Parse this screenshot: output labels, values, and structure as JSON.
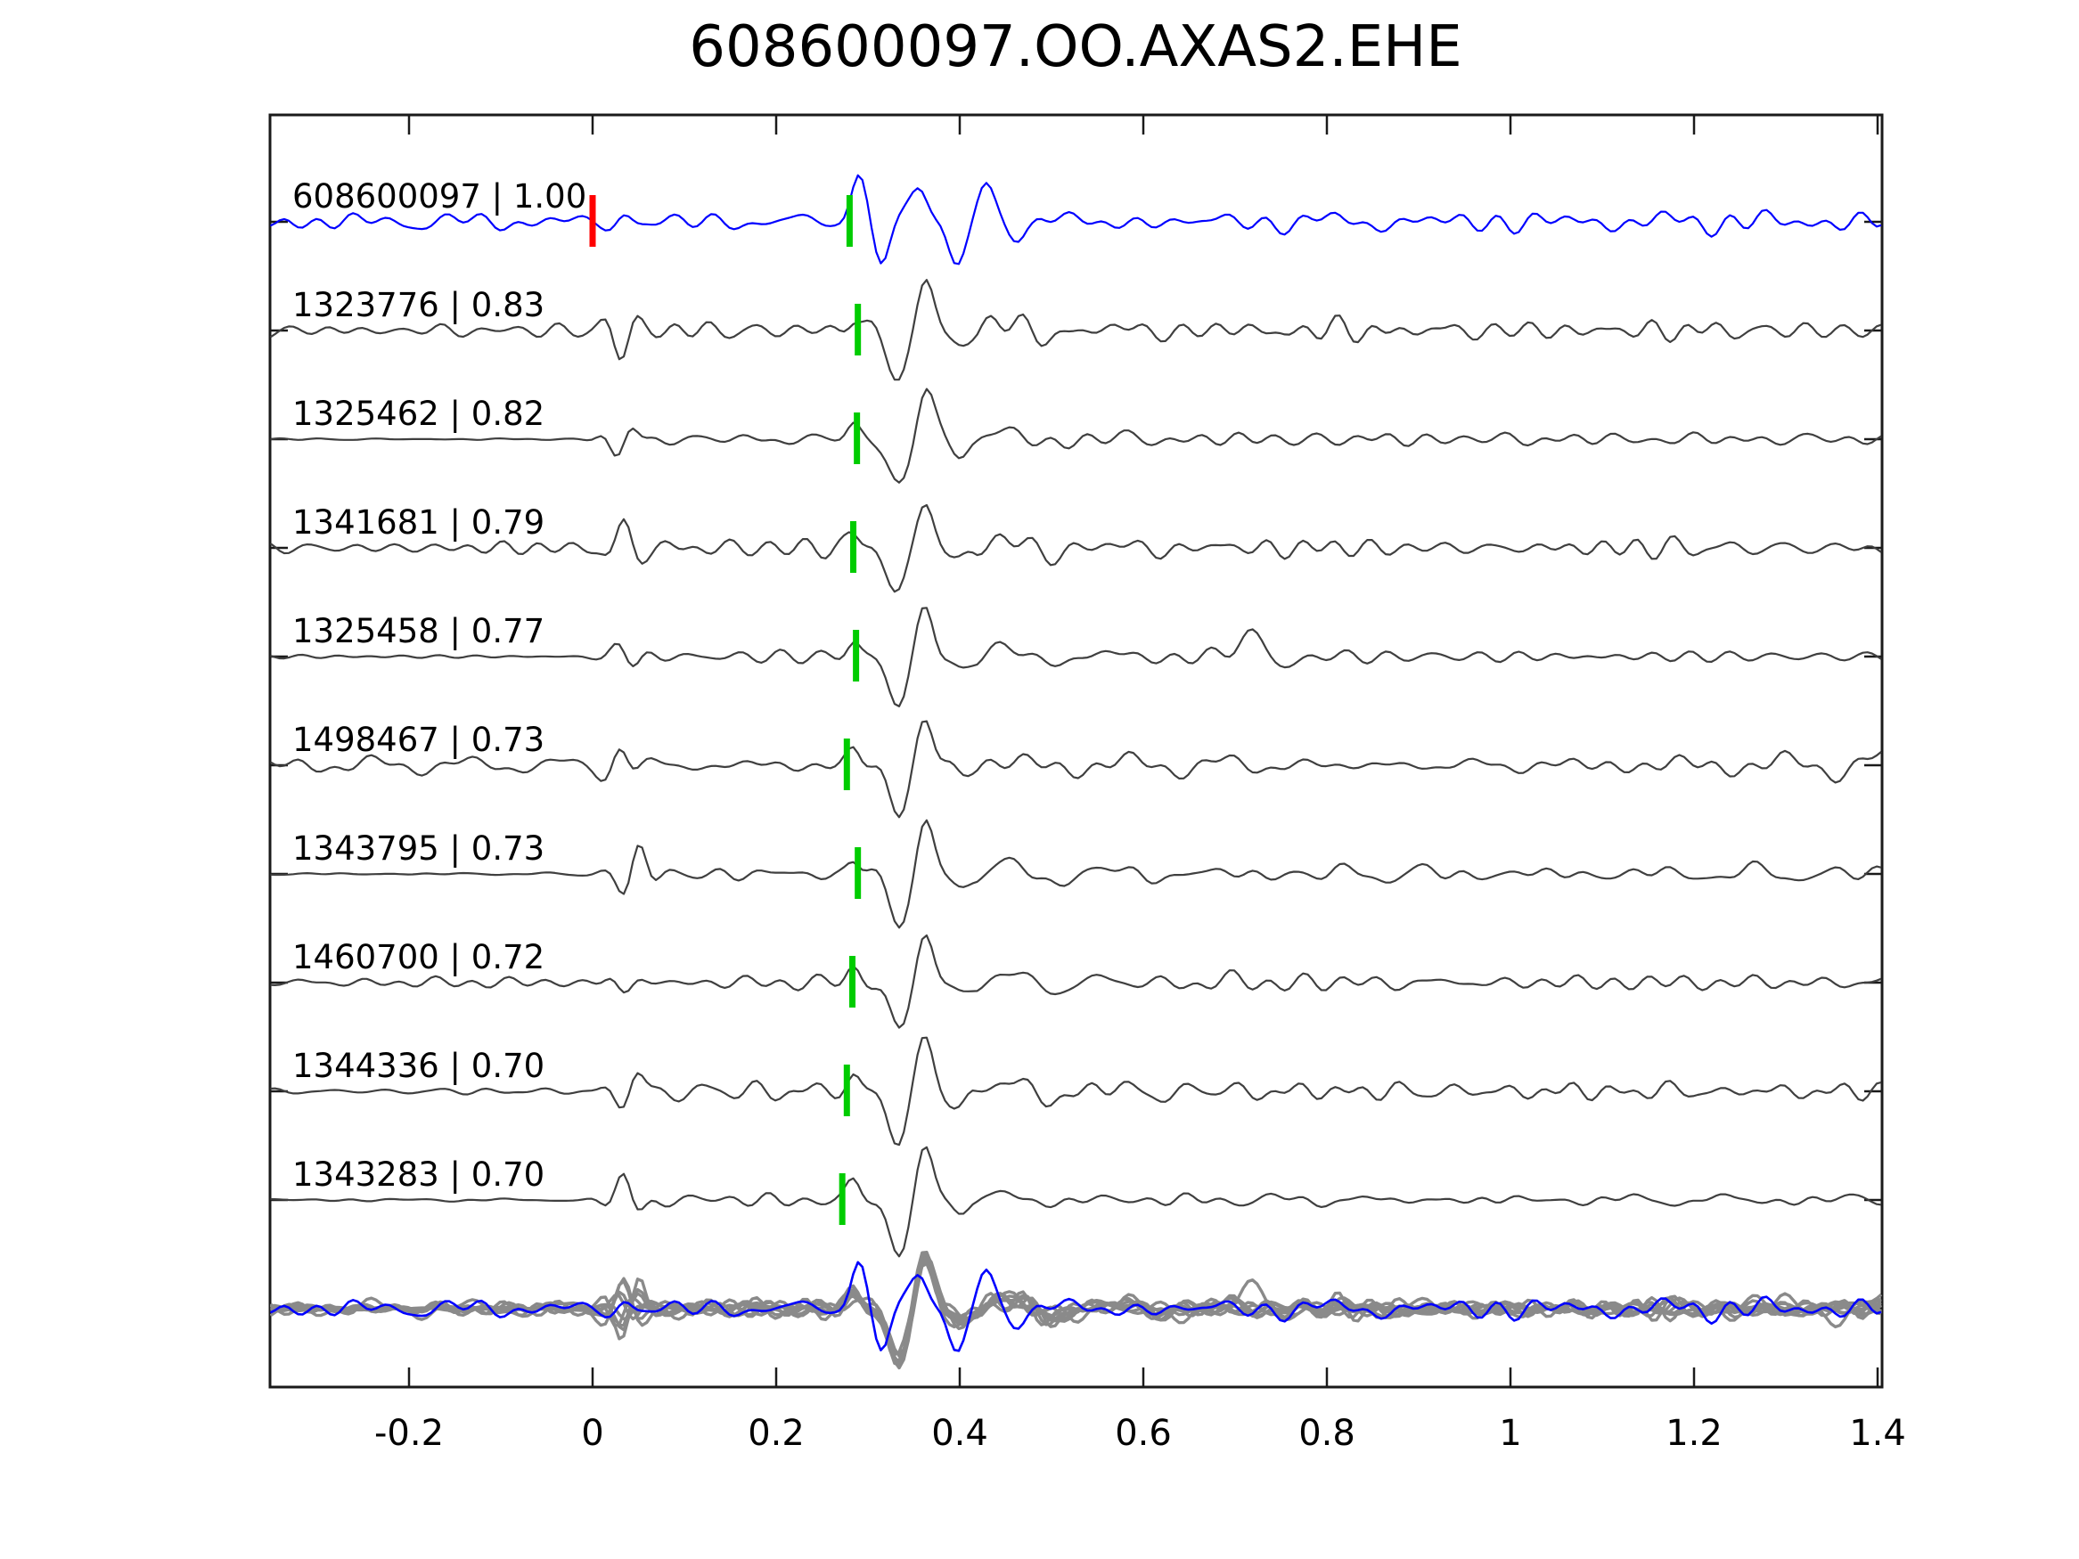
{
  "title": "608600097.OO.AXAS2.EHE",
  "colors": {
    "template": "#0000ff",
    "detection": "#3f3f3f",
    "overlay_detection": "#8a8a8a",
    "pick_marker": "#00cc00",
    "origin_marker": "#ff0000",
    "axes": "#1a1a1a",
    "text": "#000000",
    "background": "#ffffff"
  },
  "chart_data": {
    "type": "line",
    "title": "608600097.OO.AXAS2.EHE",
    "xlabel": "",
    "ylabel": "",
    "xlim": [
      -0.351,
      1.405
    ],
    "grid": false,
    "legend_position": "none",
    "xticks": {
      "values": [
        -0.2,
        0,
        0.2,
        0.4,
        0.6,
        0.8,
        1.0,
        1.2,
        1.4
      ],
      "labels": [
        "-0.2",
        "0",
        "0.2",
        "0.4",
        "0.6",
        "0.8",
        "1",
        "1.2",
        "1.4"
      ]
    },
    "description": "Stacked normalized seismic waveforms: template event (blue, top) and nine detected events ranked by cross-correlation coefficient, each with a green phase-pick marker near t=0.28; red marker at t=0 on the template trace. Bottom row overlays all nine detections (gray) with the template (blue).",
    "traces": [
      {
        "id": "608600097",
        "correlation": 1.0,
        "display": "608600097 | 1.00",
        "color": "#0000ff",
        "pick_time": 0.28,
        "pick_color": "#00cc00",
        "origin_marker_time": 0.0,
        "origin_marker_color": "#ff0000"
      },
      {
        "id": "1323776",
        "correlation": 0.83,
        "display": "1323776 | 0.83",
        "color": "#3f3f3f",
        "pick_time": 0.289,
        "pick_color": "#00cc00"
      },
      {
        "id": "1325462",
        "correlation": 0.82,
        "display": "1325462 | 0.82",
        "color": "#3f3f3f",
        "pick_time": 0.288,
        "pick_color": "#00cc00"
      },
      {
        "id": "1341681",
        "correlation": 0.79,
        "display": "1341681 | 0.79",
        "color": "#3f3f3f",
        "pick_time": 0.284,
        "pick_color": "#00cc00"
      },
      {
        "id": "1325458",
        "correlation": 0.77,
        "display": "1325458 | 0.77",
        "color": "#3f3f3f",
        "pick_time": 0.287,
        "pick_color": "#00cc00"
      },
      {
        "id": "1498467",
        "correlation": 0.73,
        "display": "1498467 | 0.73",
        "color": "#3f3f3f",
        "pick_time": 0.277,
        "pick_color": "#00cc00"
      },
      {
        "id": "1343795",
        "correlation": 0.73,
        "display": "1343795 | 0.73",
        "color": "#3f3f3f",
        "pick_time": 0.289,
        "pick_color": "#00cc00"
      },
      {
        "id": "1460700",
        "correlation": 0.72,
        "display": "1460700 | 0.72",
        "color": "#3f3f3f",
        "pick_time": 0.283,
        "pick_color": "#00cc00"
      },
      {
        "id": "1344336",
        "correlation": 0.7,
        "display": "1344336 | 0.70",
        "color": "#3f3f3f",
        "pick_time": 0.277,
        "pick_color": "#00cc00"
      },
      {
        "id": "1343283",
        "correlation": 0.7,
        "display": "1343283 | 0.70",
        "color": "#3f3f3f",
        "pick_time": 0.272,
        "pick_color": "#00cc00"
      }
    ],
    "overlay_row": {
      "contains": "all 9 detections overlaid with template",
      "detection_color": "#8a8a8a",
      "template_color": "#0000ff"
    }
  }
}
